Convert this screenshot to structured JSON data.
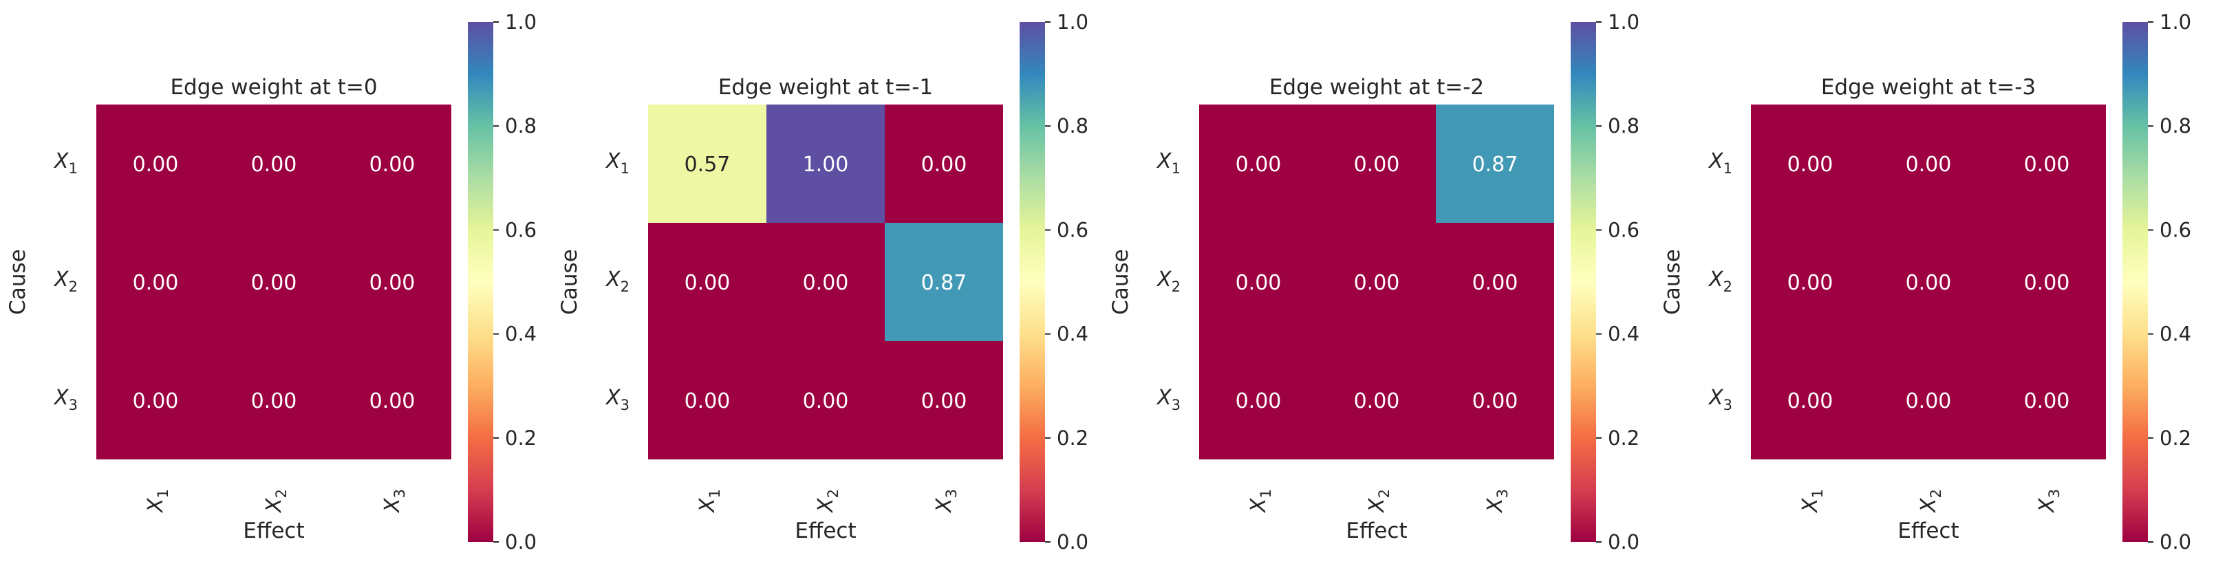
{
  "chart_data": [
    {
      "type": "heatmap",
      "title": "Edge weight at t=0",
      "xlabel": "Effect",
      "ylabel": "Cause",
      "x_categories": [
        "X_1",
        "X_2",
        "X_3"
      ],
      "y_categories": [
        "X_1",
        "X_2",
        "X_3"
      ],
      "values": [
        [
          0.0,
          0.0,
          0.0
        ],
        [
          0.0,
          0.0,
          0.0
        ],
        [
          0.0,
          0.0,
          0.0
        ]
      ],
      "value_labels": [
        [
          "0.00",
          "0.00",
          "0.00"
        ],
        [
          "0.00",
          "0.00",
          "0.00"
        ],
        [
          "0.00",
          "0.00",
          "0.00"
        ]
      ],
      "colorbar": {
        "range": [
          0,
          1
        ],
        "ticks": [
          "0.0",
          "0.2",
          "0.4",
          "0.6",
          "0.8",
          "1.0"
        ],
        "colormap": "Spectral"
      }
    },
    {
      "type": "heatmap",
      "title": "Edge weight at t=-1",
      "xlabel": "Effect",
      "ylabel": "Cause",
      "x_categories": [
        "X_1",
        "X_2",
        "X_3"
      ],
      "y_categories": [
        "X_1",
        "X_2",
        "X_3"
      ],
      "values": [
        [
          0.57,
          1.0,
          0.0
        ],
        [
          0.0,
          0.0,
          0.87
        ],
        [
          0.0,
          0.0,
          0.0
        ]
      ],
      "value_labels": [
        [
          "0.57",
          "1.00",
          "0.00"
        ],
        [
          "0.00",
          "0.00",
          "0.87"
        ],
        [
          "0.00",
          "0.00",
          "0.00"
        ]
      ],
      "colorbar": {
        "range": [
          0,
          1
        ],
        "ticks": [
          "0.0",
          "0.2",
          "0.4",
          "0.6",
          "0.8",
          "1.0"
        ],
        "colormap": "Spectral"
      }
    },
    {
      "type": "heatmap",
      "title": "Edge weight at t=-2",
      "xlabel": "Effect",
      "ylabel": "Cause",
      "x_categories": [
        "X_1",
        "X_2",
        "X_3"
      ],
      "y_categories": [
        "X_1",
        "X_2",
        "X_3"
      ],
      "values": [
        [
          0.0,
          0.0,
          0.87
        ],
        [
          0.0,
          0.0,
          0.0
        ],
        [
          0.0,
          0.0,
          0.0
        ]
      ],
      "value_labels": [
        [
          "0.00",
          "0.00",
          "0.87"
        ],
        [
          "0.00",
          "0.00",
          "0.00"
        ],
        [
          "0.00",
          "0.00",
          "0.00"
        ]
      ],
      "colorbar": {
        "range": [
          0,
          1
        ],
        "ticks": [
          "0.0",
          "0.2",
          "0.4",
          "0.6",
          "0.8",
          "1.0"
        ],
        "colormap": "Spectral"
      }
    },
    {
      "type": "heatmap",
      "title": "Edge weight at t=-3",
      "xlabel": "Effect",
      "ylabel": "Cause",
      "x_categories": [
        "X_1",
        "X_2",
        "X_3"
      ],
      "y_categories": [
        "X_1",
        "X_2",
        "X_3"
      ],
      "values": [
        [
          0.0,
          0.0,
          0.0
        ],
        [
          0.0,
          0.0,
          0.0
        ],
        [
          0.0,
          0.0,
          0.0
        ]
      ],
      "value_labels": [
        [
          "0.00",
          "0.00",
          "0.00"
        ],
        [
          "0.00",
          "0.00",
          "0.00"
        ],
        [
          "0.00",
          "0.00",
          "0.00"
        ]
      ],
      "colorbar": {
        "range": [
          0,
          1
        ],
        "ticks": [
          "0.0",
          "0.2",
          "0.4",
          "0.6",
          "0.8",
          "1.0"
        ],
        "colormap": "Spectral"
      }
    }
  ]
}
